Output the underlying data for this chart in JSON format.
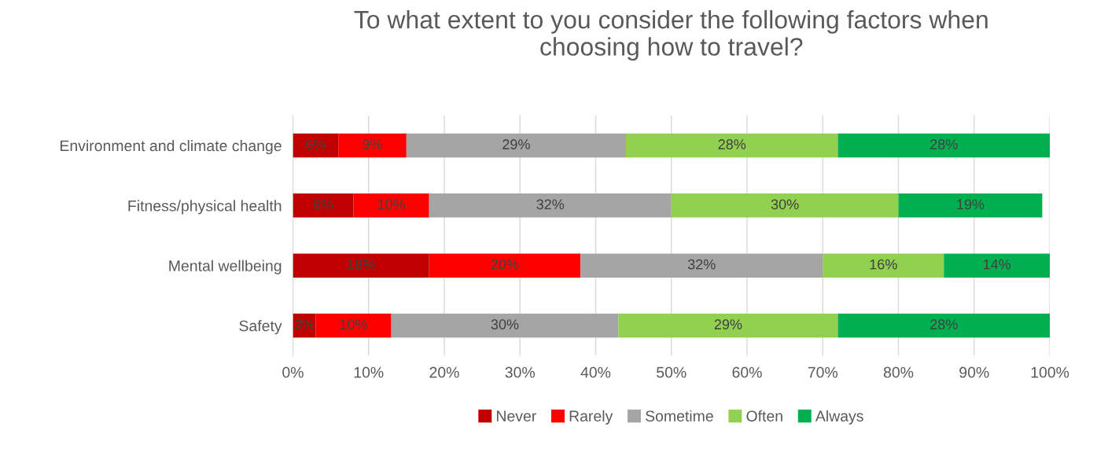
{
  "chart_data": {
    "type": "bar",
    "orientation": "horizontal",
    "stacked": true,
    "title": "To what extent to you consider the following factors when\nchoosing how to travel?",
    "categories": [
      "Environment and climate change",
      "Fitness/physical health",
      "Mental wellbeing",
      "Safety"
    ],
    "series": [
      {
        "name": "Never",
        "color": "#c00000",
        "values": [
          6,
          8,
          18,
          3
        ],
        "value_labels": [
          "6%",
          "8%",
          "18%",
          "3%"
        ]
      },
      {
        "name": "Rarely",
        "color": "#ff0000",
        "values": [
          9,
          10,
          20,
          10
        ],
        "value_labels": [
          "9%",
          "10%",
          "20%",
          "10%"
        ]
      },
      {
        "name": "Sometime",
        "color": "#a5a5a5",
        "values": [
          29,
          32,
          32,
          30
        ],
        "value_labels": [
          "29%",
          "32%",
          "32%",
          "30%"
        ]
      },
      {
        "name": "Often",
        "color": "#92d050",
        "values": [
          28,
          30,
          16,
          29
        ],
        "value_labels": [
          "28%",
          "30%",
          "16%",
          "29%"
        ]
      },
      {
        "name": "Always",
        "color": "#00b050",
        "values": [
          28,
          19,
          14,
          28
        ],
        "value_labels": [
          "28%",
          "19%",
          "14%",
          "28%"
        ]
      }
    ],
    "xlim": [
      0,
      100
    ],
    "xticks": [
      {
        "value": 0,
        "label": "0%"
      },
      {
        "value": 10,
        "label": "10%"
      },
      {
        "value": 20,
        "label": "20%"
      },
      {
        "value": 30,
        "label": "30%"
      },
      {
        "value": 40,
        "label": "40%"
      },
      {
        "value": 50,
        "label": "50%"
      },
      {
        "value": 60,
        "label": "60%"
      },
      {
        "value": 70,
        "label": "70%"
      },
      {
        "value": 80,
        "label": "80%"
      },
      {
        "value": 90,
        "label": "90%"
      },
      {
        "value": 100,
        "label": "100%"
      }
    ],
    "grid": "x",
    "legend": "bottom"
  }
}
